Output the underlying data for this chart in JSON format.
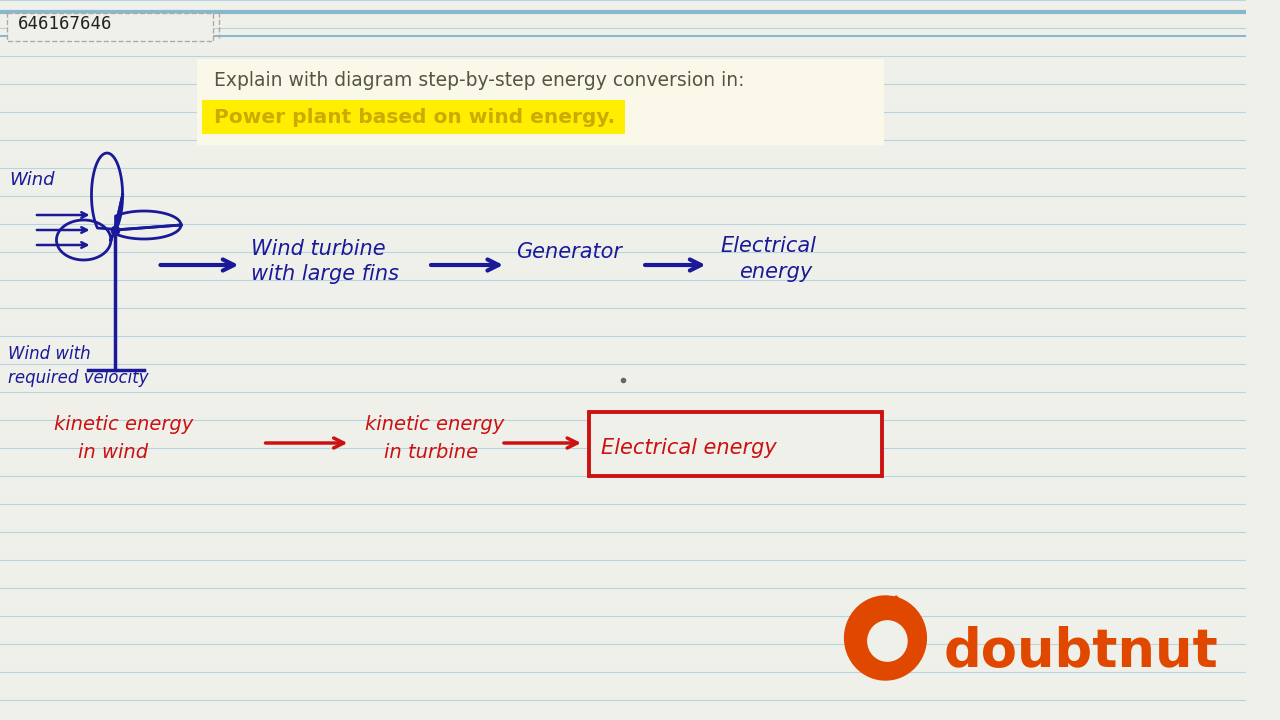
{
  "bg_color": "#f0f0eb",
  "line_color": "#b8d4e0",
  "header_bg": "#faf8e8",
  "id_text": "646167646",
  "question_line1": "Explain with diagram step-by-step energy conversion in:",
  "question_line2": "Power plant based on wind energy.",
  "question_color": "#555544",
  "highlight_color": "#ffee00",
  "highlight_text_color": "#ccaa00",
  "blue_color": "#1a1a99",
  "red_color": "#cc1111",
  "orange_color": "#e04800",
  "doubtnut_text": "doubtnut"
}
